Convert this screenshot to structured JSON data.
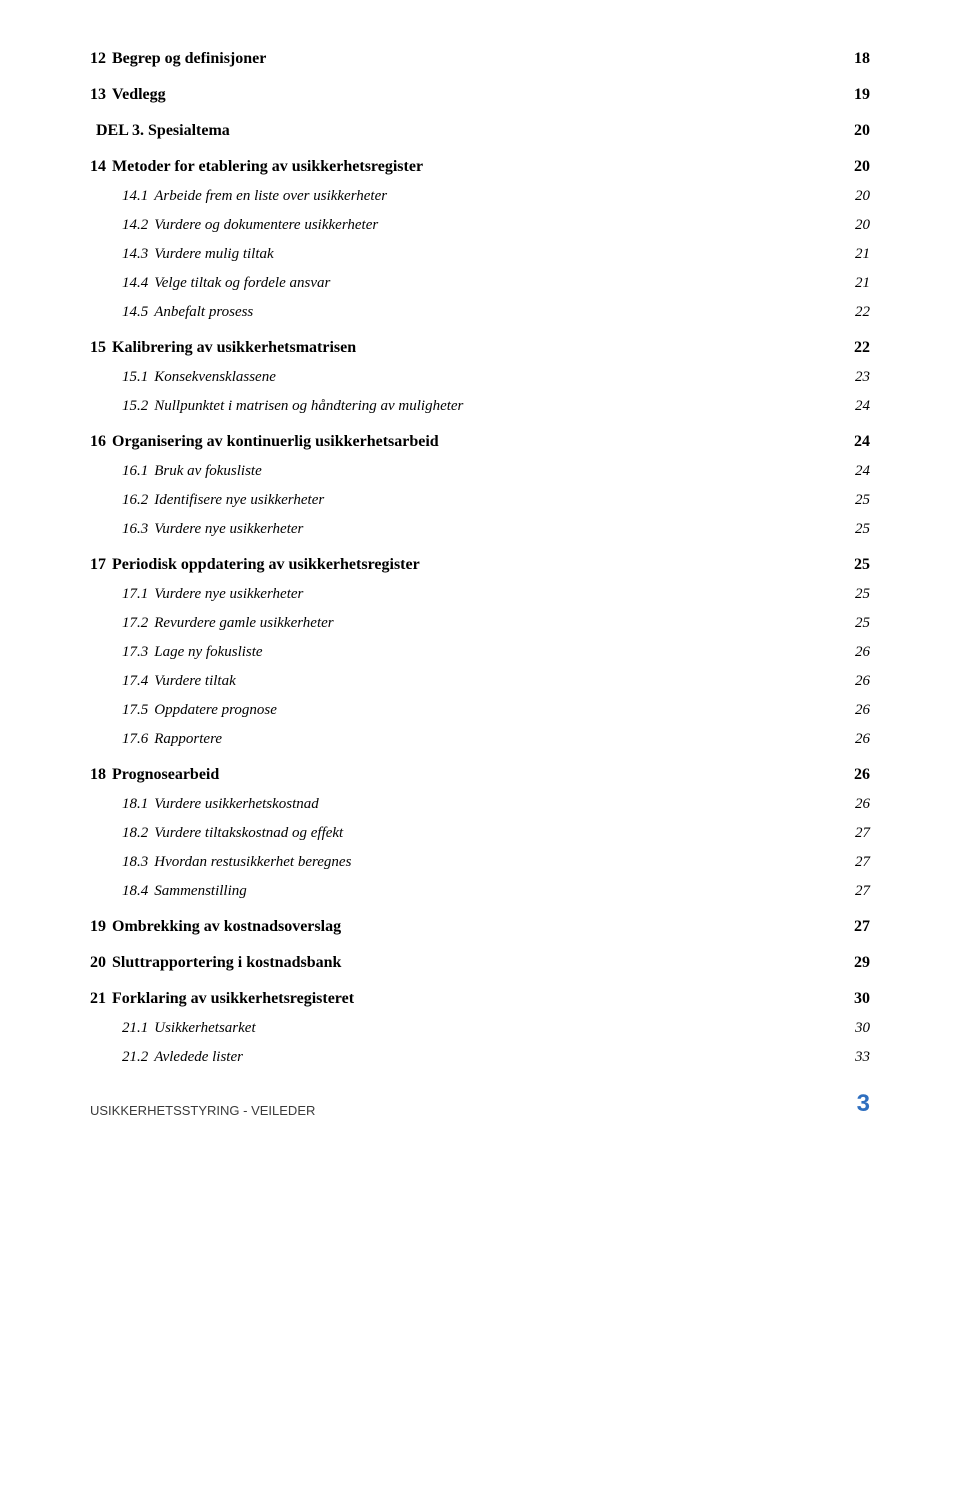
{
  "toc": [
    {
      "num": "12",
      "title": "Begrep og definisjoner",
      "page": "18",
      "level": 1,
      "bold": true,
      "italic": false,
      "gap": false
    },
    {
      "num": "13",
      "title": "Vedlegg",
      "page": "19",
      "level": 1,
      "bold": true,
      "italic": false,
      "gap": true
    },
    {
      "num": "",
      "title": "DEL 3. Spesialtema",
      "page": "20",
      "level": 1,
      "bold": true,
      "italic": false,
      "gap": true
    },
    {
      "num": "14",
      "title": "Metoder for etablering av usikkerhetsregister",
      "page": "20",
      "level": 1,
      "bold": true,
      "italic": false,
      "gap": true
    },
    {
      "num": "14.1",
      "title": "Arbeide frem en liste over usikkerheter",
      "page": "20",
      "level": 2,
      "bold": false,
      "italic": true,
      "gap": false
    },
    {
      "num": "14.2",
      "title": "Vurdere og dokumentere usikkerheter",
      "page": "20",
      "level": 2,
      "bold": false,
      "italic": true,
      "gap": false
    },
    {
      "num": "14.3",
      "title": "Vurdere mulig tiltak",
      "page": "21",
      "level": 2,
      "bold": false,
      "italic": true,
      "gap": false
    },
    {
      "num": "14.4",
      "title": "Velge tiltak og fordele ansvar",
      "page": "21",
      "level": 2,
      "bold": false,
      "italic": true,
      "gap": false
    },
    {
      "num": "14.5",
      "title": "Anbefalt prosess",
      "page": "22",
      "level": 2,
      "bold": false,
      "italic": true,
      "gap": false
    },
    {
      "num": "15",
      "title": "Kalibrering av usikkerhetsmatrisen",
      "page": "22",
      "level": 1,
      "bold": true,
      "italic": false,
      "gap": true
    },
    {
      "num": "15.1",
      "title": "Konsekvensklassene",
      "page": "23",
      "level": 2,
      "bold": false,
      "italic": true,
      "gap": false
    },
    {
      "num": "15.2",
      "title": "Nullpunktet i matrisen og håndtering av muligheter",
      "page": "24",
      "level": 2,
      "bold": false,
      "italic": true,
      "gap": false
    },
    {
      "num": "16",
      "title": "Organisering av kontinuerlig usikkerhetsarbeid",
      "page": "24",
      "level": 1,
      "bold": true,
      "italic": false,
      "gap": true
    },
    {
      "num": "16.1",
      "title": "Bruk av fokusliste",
      "page": "24",
      "level": 2,
      "bold": false,
      "italic": true,
      "gap": false
    },
    {
      "num": "16.2",
      "title": "Identifisere nye usikkerheter",
      "page": "25",
      "level": 2,
      "bold": false,
      "italic": true,
      "gap": false
    },
    {
      "num": "16.3",
      "title": "Vurdere nye usikkerheter",
      "page": "25",
      "level": 2,
      "bold": false,
      "italic": true,
      "gap": false
    },
    {
      "num": "17",
      "title": "Periodisk oppdatering av usikkerhetsregister",
      "page": "25",
      "level": 1,
      "bold": true,
      "italic": false,
      "gap": true
    },
    {
      "num": "17.1",
      "title": "Vurdere nye usikkerheter",
      "page": "25",
      "level": 2,
      "bold": false,
      "italic": true,
      "gap": false
    },
    {
      "num": "17.2",
      "title": "Revurdere gamle usikkerheter",
      "page": "25",
      "level": 2,
      "bold": false,
      "italic": true,
      "gap": false
    },
    {
      "num": "17.3",
      "title": "Lage ny fokusliste",
      "page": "26",
      "level": 2,
      "bold": false,
      "italic": true,
      "gap": false
    },
    {
      "num": "17.4",
      "title": "Vurdere tiltak",
      "page": "26",
      "level": 2,
      "bold": false,
      "italic": true,
      "gap": false
    },
    {
      "num": "17.5",
      "title": "Oppdatere prognose",
      "page": "26",
      "level": 2,
      "bold": false,
      "italic": true,
      "gap": false
    },
    {
      "num": "17.6",
      "title": "Rapportere",
      "page": "26",
      "level": 2,
      "bold": false,
      "italic": true,
      "gap": false
    },
    {
      "num": "18",
      "title": "Prognosearbeid",
      "page": "26",
      "level": 1,
      "bold": true,
      "italic": false,
      "gap": true
    },
    {
      "num": "18.1",
      "title": "Vurdere usikkerhetskostnad",
      "page": "26",
      "level": 2,
      "bold": false,
      "italic": true,
      "gap": false
    },
    {
      "num": "18.2",
      "title": "Vurdere tiltakskostnad og effekt",
      "page": "27",
      "level": 2,
      "bold": false,
      "italic": true,
      "gap": false
    },
    {
      "num": "18.3",
      "title": "Hvordan restusikkerhet beregnes",
      "page": "27",
      "level": 2,
      "bold": false,
      "italic": true,
      "gap": false
    },
    {
      "num": "18.4",
      "title": "Sammenstilling",
      "page": "27",
      "level": 2,
      "bold": false,
      "italic": true,
      "gap": false
    },
    {
      "num": "19",
      "title": "Ombrekking av kostnadsoverslag",
      "page": "27",
      "level": 1,
      "bold": true,
      "italic": false,
      "gap": true
    },
    {
      "num": "20",
      "title": "Sluttrapportering i kostnadsbank",
      "page": "29",
      "level": 1,
      "bold": true,
      "italic": false,
      "gap": true
    },
    {
      "num": "21",
      "title": "Forklaring av usikkerhetsregisteret",
      "page": "30",
      "level": 1,
      "bold": true,
      "italic": false,
      "gap": true
    },
    {
      "num": "21.1",
      "title": "Usikkerhetsarket",
      "page": "30",
      "level": 2,
      "bold": false,
      "italic": true,
      "gap": false
    },
    {
      "num": "21.2",
      "title": "Avledede lister",
      "page": "33",
      "level": 2,
      "bold": false,
      "italic": true,
      "gap": false
    }
  ],
  "footer": {
    "left": "USIKKERHETSSTYRING - VEILEDER",
    "page_number": "3",
    "page_number_color": "#2f6fbf"
  }
}
